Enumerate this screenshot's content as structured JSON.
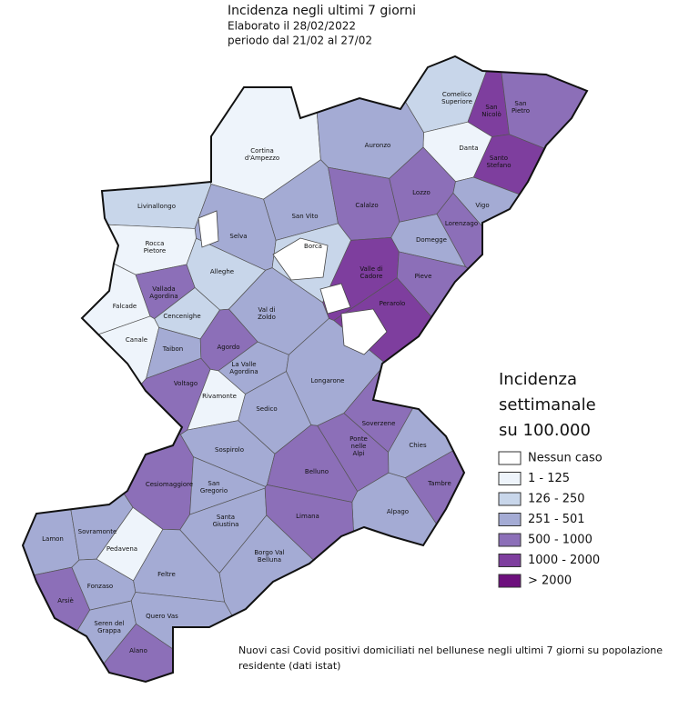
{
  "header": {
    "title": "Incidenza negli ultimi 7 giorni",
    "subtitle": [
      "Elaborato il 28/02/2022",
      "periodo dal 21/02 al 27/02"
    ]
  },
  "legend": {
    "title": [
      "Incidenza",
      "settimanale",
      "su 100.000"
    ],
    "items": [
      {
        "label": "Nessun caso",
        "color": "#ffffff"
      },
      {
        "label": "1 - 125",
        "color": "#eef4fb"
      },
      {
        "label": "126 - 250",
        "color": "#c8d6ea"
      },
      {
        "label": "251 - 501",
        "color": "#a4abd4"
      },
      {
        "label": "500 - 1000",
        "color": "#8c6fb8"
      },
      {
        "label": "1000 - 2000",
        "color": "#7e3e9e"
      },
      {
        "label": "> 2000",
        "color": "#6d0f7d"
      }
    ]
  },
  "municipalities": [
    {
      "label": [
        "Cortina",
        "d'Ampezzo"
      ],
      "color": "#eef4fb"
    },
    {
      "label": [
        "Comelico",
        "Superiore"
      ],
      "color": "#c8d6ea"
    },
    {
      "label": [
        "San",
        "Nicolò"
      ],
      "color": "#7e3e9e"
    },
    {
      "label": [
        "San",
        "Pietro"
      ],
      "color": "#8c6fb8"
    },
    {
      "label": [
        "Danta"
      ],
      "color": "#eef4fb"
    },
    {
      "label": [
        "Santo",
        "Stefano"
      ],
      "color": "#7e3e9e"
    },
    {
      "label": [
        "Auronzo"
      ],
      "color": "#a4abd4"
    },
    {
      "label": [
        "Livinallongo"
      ],
      "color": "#c8d6ea"
    },
    {
      "label": [
        "San Vito"
      ],
      "color": "#a4abd4"
    },
    {
      "label": [
        "Calalzo"
      ],
      "color": "#8c6fb8"
    },
    {
      "label": [
        "Lozzo"
      ],
      "color": "#8c6fb8"
    },
    {
      "label": [
        "Vigo"
      ],
      "color": "#a4abd4"
    },
    {
      "label": [
        "Lorenzago"
      ],
      "color": "#8c6fb8"
    },
    {
      "label": [
        "Domegge"
      ],
      "color": "#a4abd4"
    },
    {
      "label": [
        "Selva"
      ],
      "color": "#a4abd4"
    },
    {
      "label": [
        "Borca"
      ],
      "color": "#c8d6ea"
    },
    {
      "label": [
        "Rocca",
        "Pietore"
      ],
      "color": "#eef4fb"
    },
    {
      "label": [
        "Alleghe"
      ],
      "color": "#c8d6ea"
    },
    {
      "label": [
        "Valle di",
        "Cadore"
      ],
      "color": "#7e3e9e"
    },
    {
      "label": [
        "Pieve"
      ],
      "color": "#8c6fb8"
    },
    {
      "label": [
        "Perarolo"
      ],
      "color": "#7e3e9e"
    },
    {
      "label": [
        "Vallada",
        "Agordina"
      ],
      "color": "#8c6fb8"
    },
    {
      "label": [
        "Falcade"
      ],
      "color": "#eef4fb"
    },
    {
      "label": [
        "Cencenighe"
      ],
      "color": "#c8d6ea"
    },
    {
      "label": [
        "Canale"
      ],
      "color": "#eef4fb"
    },
    {
      "label": [
        "Val di",
        "Zoldo"
      ],
      "color": "#a4abd4"
    },
    {
      "label": [
        "Taibon"
      ],
      "color": "#a4abd4"
    },
    {
      "label": [
        "Agordo"
      ],
      "color": "#8c6fb8"
    },
    {
      "label": [
        "La Valle",
        "Agordina"
      ],
      "color": "#a4abd4"
    },
    {
      "label": [
        "Longarone"
      ],
      "color": "#a4abd4"
    },
    {
      "label": [
        "Voltago"
      ],
      "color": "#8c6fb8"
    },
    {
      "label": [
        "Rivamonte"
      ],
      "color": "#eef4fb"
    },
    {
      "label": [
        "Sedico"
      ],
      "color": "#a4abd4"
    },
    {
      "label": [
        "Soverzene"
      ],
      "color": "#8c6fb8"
    },
    {
      "label": [
        "Ponte",
        "nelle",
        "Alpi"
      ],
      "color": "#8c6fb8"
    },
    {
      "label": [
        "Chies"
      ],
      "color": "#a4abd4"
    },
    {
      "label": [
        "Sospirolo"
      ],
      "color": "#a4abd4"
    },
    {
      "label": [
        "Cesiomaggiore"
      ],
      "color": "#8c6fb8"
    },
    {
      "label": [
        "San",
        "Gregorio"
      ],
      "color": "#a4abd4"
    },
    {
      "label": [
        "Belluno"
      ],
      "color": "#8c6fb8"
    },
    {
      "label": [
        "Tambre"
      ],
      "color": "#8c6fb8"
    },
    {
      "label": [
        "Santa",
        "Giustina"
      ],
      "color": "#a4abd4"
    },
    {
      "label": [
        "Lamon"
      ],
      "color": "#a4abd4"
    },
    {
      "label": [
        "Sovramonte"
      ],
      "color": "#a4abd4"
    },
    {
      "label": [
        "Alpago"
      ],
      "color": "#a4abd4"
    },
    {
      "label": [
        "Limana"
      ],
      "color": "#8c6fb8"
    },
    {
      "label": [
        "Pedavena"
      ],
      "color": "#eef4fb"
    },
    {
      "label": [
        "Borgo Val",
        "Belluna"
      ],
      "color": "#a4abd4"
    },
    {
      "label": [
        "Feltre"
      ],
      "color": "#a4abd4"
    },
    {
      "label": [
        "Fonzaso"
      ],
      "color": "#a4abd4"
    },
    {
      "label": [
        "Arsiè"
      ],
      "color": "#8c6fb8"
    },
    {
      "label": [
        "Seren del",
        "Grappa"
      ],
      "color": "#a4abd4"
    },
    {
      "label": [
        "Quero Vas"
      ],
      "color": "#a4abd4"
    },
    {
      "label": [
        "Alano"
      ],
      "color": "#8c6fb8"
    }
  ],
  "footnote": [
    "Nuovi casi Covid positivi domiciliati nel bellunese negli ultimi 7 giorni su popolazione",
    "residente (dati istat)"
  ]
}
